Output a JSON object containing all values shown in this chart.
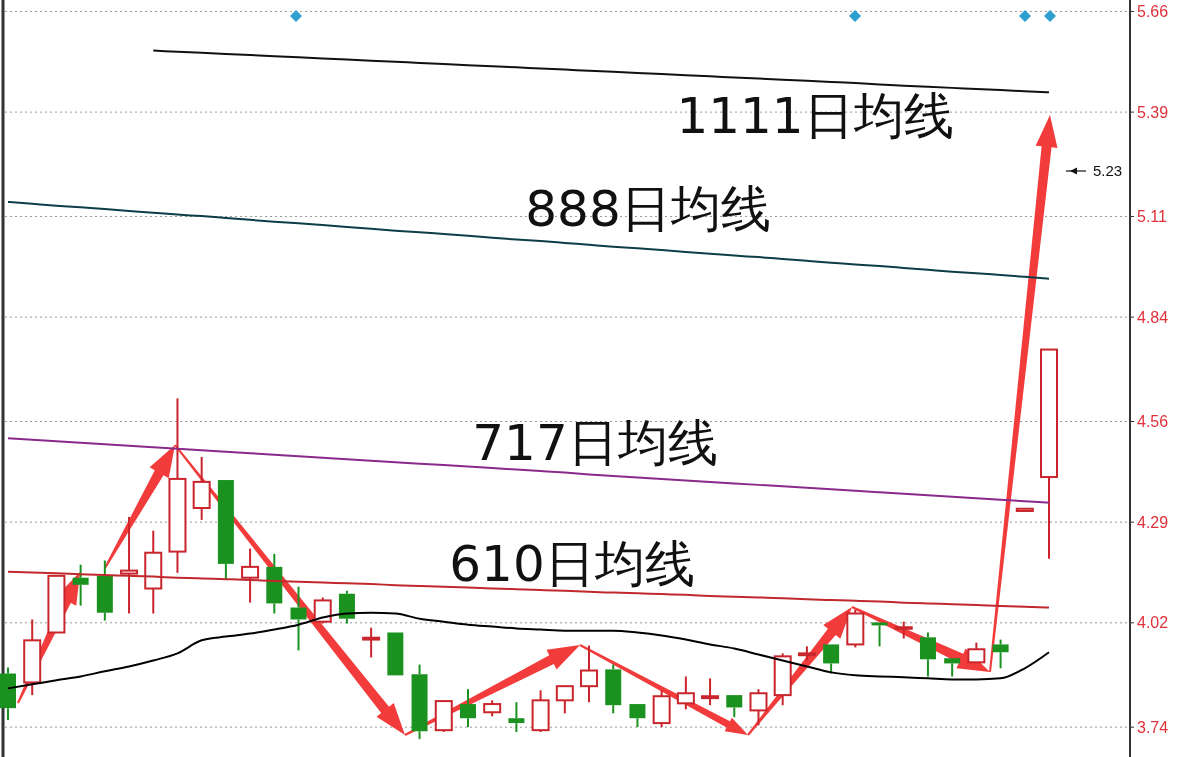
{
  "chart_data": {
    "type": "candlestick",
    "categories": [
      null,
      null,
      null,
      null,
      null,
      null,
      null,
      null,
      null,
      null,
      null,
      null,
      null,
      null,
      null,
      null,
      null,
      null,
      null,
      null,
      null,
      null,
      null,
      null,
      null,
      null,
      null,
      null,
      null,
      null,
      null,
      null,
      null,
      null,
      null,
      null,
      null,
      null,
      null,
      null,
      null,
      null,
      null,
      null
    ],
    "ohlc": [
      [
        3.884,
        3.9,
        3.759,
        3.791
      ],
      [
        3.86,
        4.029,
        3.826,
        3.973
      ],
      [
        3.994,
        4.146,
        3.994,
        4.146
      ],
      [
        4.141,
        4.176,
        4.066,
        4.122
      ],
      [
        4.146,
        4.187,
        4.026,
        4.047
      ],
      [
        4.152,
        4.304,
        4.045,
        4.16
      ],
      [
        4.112,
        4.267,
        4.045,
        4.208
      ],
      [
        4.211,
        4.622,
        4.154,
        4.406
      ],
      [
        4.328,
        4.465,
        4.296,
        4.398
      ],
      [
        4.403,
        4.403,
        4.136,
        4.178
      ],
      [
        4.141,
        4.219,
        4.074,
        4.17
      ],
      [
        4.17,
        4.205,
        4.045,
        4.072
      ],
      [
        4.061,
        4.117,
        3.946,
        4.029
      ],
      [
        4.023,
        4.088,
        4.018,
        4.08
      ],
      [
        4.098,
        4.106,
        4.018,
        4.031
      ],
      [
        3.975,
        4.007,
        3.927,
        3.98
      ],
      [
        3.994,
        3.994,
        3.879,
        3.879
      ],
      [
        3.882,
        3.908,
        3.708,
        3.729
      ],
      [
        3.732,
        3.81,
        3.727,
        3.81
      ],
      [
        3.802,
        3.842,
        3.74,
        3.764
      ],
      [
        3.78,
        3.812,
        3.769,
        3.802
      ],
      [
        3.764,
        3.807,
        3.727,
        3.751
      ],
      [
        3.732,
        3.839,
        3.727,
        3.812
      ],
      [
        3.812,
        3.85,
        3.777,
        3.85
      ],
      [
        3.85,
        3.959,
        3.807,
        3.892
      ],
      [
        3.895,
        3.908,
        3.777,
        3.799
      ],
      [
        3.802,
        3.802,
        3.74,
        3.764
      ],
      [
        3.751,
        3.839,
        3.74,
        3.823
      ],
      [
        3.804,
        3.876,
        3.788,
        3.831
      ],
      [
        3.818,
        3.871,
        3.799,
        3.823
      ],
      [
        3.826,
        3.826,
        3.767,
        3.793
      ],
      [
        3.785,
        3.842,
        3.745,
        3.831
      ],
      [
        3.826,
        3.938,
        3.799,
        3.93
      ],
      [
        3.933,
        3.957,
        3.919,
        3.938
      ],
      [
        3.962,
        3.962,
        3.884,
        3.911
      ],
      [
        3.962,
        4.055,
        3.954,
        4.045
      ],
      [
        4.021,
        4.021,
        3.957,
        4.013
      ],
      [
        4.005,
        4.023,
        3.978,
        4.008
      ],
      [
        3.981,
        3.994,
        3.876,
        3.922
      ],
      [
        3.925,
        3.925,
        3.876,
        3.911
      ],
      [
        3.914,
        3.967,
        3.914,
        3.949
      ],
      [
        3.962,
        3.975,
        3.898,
        3.941
      ],
      [
        4.32,
        4.326,
        4.318,
        4.326
      ],
      [
        4.411,
        4.753,
        4.192,
        4.753
      ]
    ],
    "colors": [
      "#1b921f",
      "#c9252c",
      "#c9252c",
      "#1b921f",
      "#1b921f",
      "#c9252c",
      "#c9252c",
      "#c9252c",
      "#c9252c",
      "#1b921f",
      "#c9252c",
      "#1b921f",
      "#1b921f",
      "#c9252c",
      "#1b921f",
      "#c9252c",
      "#1b921f",
      "#1b921f",
      "#c9252c",
      "#1b921f",
      "#c9252c",
      "#1b921f",
      "#c9252c",
      "#c9252c",
      "#c9252c",
      "#1b921f",
      "#1b921f",
      "#c9252c",
      "#c9252c",
      "#c9252c",
      "#1b921f",
      "#c9252c",
      "#c9252c",
      "#c9252c",
      "#1b921f",
      "#c9252c",
      "#1b921f",
      "#c9252c",
      "#1b921f",
      "#1b921f",
      "#c9252c",
      "#1b921f",
      "#c9252c",
      "#c9252c"
    ],
    "series": [
      {
        "type": "line",
        "name": "610日均线",
        "color": "#c0282d",
        "values": [
          4.157,
          4.155,
          4.153,
          4.15,
          4.148,
          4.146,
          4.144,
          4.141,
          4.139,
          4.137,
          4.135,
          4.132,
          4.13,
          4.128,
          4.126,
          4.124,
          4.121,
          4.119,
          4.117,
          4.115,
          4.112,
          4.11,
          4.108,
          4.106,
          4.103,
          4.101,
          4.099,
          4.097,
          4.095,
          4.092,
          4.09,
          4.088,
          4.086,
          4.083,
          4.081,
          4.079,
          4.077,
          4.074,
          4.072,
          4.07,
          4.068,
          4.065,
          4.063,
          4.061
        ]
      },
      {
        "type": "line",
        "name": "717日均线",
        "color": "#8a2a8a",
        "values": [
          4.515,
          4.511,
          4.507,
          4.503,
          4.499,
          4.495,
          4.491,
          4.487,
          4.483,
          4.479,
          4.475,
          4.471,
          4.467,
          4.463,
          4.459,
          4.455,
          4.451,
          4.447,
          4.443,
          4.439,
          4.435,
          4.431,
          4.427,
          4.423,
          4.418,
          4.414,
          4.41,
          4.406,
          4.402,
          4.398,
          4.394,
          4.39,
          4.386,
          4.382,
          4.378,
          4.374,
          4.37,
          4.366,
          4.362,
          4.358,
          4.354,
          4.35,
          4.346,
          4.342
        ]
      },
      {
        "type": "line",
        "name": "888日均线",
        "color": "#0e3d4a",
        "values": [
          5.149,
          5.144,
          5.139,
          5.135,
          5.13,
          5.125,
          5.12,
          5.115,
          5.111,
          5.106,
          5.101,
          5.096,
          5.092,
          5.087,
          5.082,
          5.077,
          5.072,
          5.068,
          5.063,
          5.058,
          5.053,
          5.048,
          5.044,
          5.039,
          5.034,
          5.029,
          5.025,
          5.02,
          5.015,
          5.01,
          5.005,
          5.001,
          4.996,
          4.991,
          4.986,
          4.981,
          4.977,
          4.972,
          4.967,
          4.962,
          4.958,
          4.953,
          4.948,
          4.943
        ]
      },
      {
        "type": "line",
        "name": "1111日均线",
        "color": "#111111",
        "values": [
          null,
          null,
          null,
          null,
          null,
          null,
          5.555,
          5.552,
          5.549,
          5.546,
          5.543,
          5.54,
          5.537,
          5.534,
          5.531,
          5.528,
          5.525,
          5.522,
          5.519,
          5.516,
          5.513,
          5.51,
          5.507,
          5.504,
          5.501,
          5.498,
          5.495,
          5.492,
          5.489,
          5.486,
          5.483,
          5.48,
          5.477,
          5.474,
          5.471,
          5.468,
          5.464,
          5.461,
          5.458,
          5.455,
          5.452,
          5.449,
          5.446,
          5.443
        ]
      },
      {
        "type": "line",
        "color": "#000000",
        "values": [
          3.844,
          3.855,
          3.866,
          3.876,
          3.89,
          3.903,
          3.919,
          3.938,
          3.973,
          3.983,
          3.991,
          4.002,
          4.015,
          4.034,
          4.045,
          4.047,
          4.045,
          4.031,
          4.023,
          4.015,
          4.01,
          4.005,
          4.002,
          3.999,
          3.999,
          3.999,
          3.994,
          3.986,
          3.975,
          3.962,
          3.951,
          3.935,
          3.919,
          3.903,
          3.887,
          3.879,
          3.876,
          3.874,
          3.871,
          3.868,
          3.868,
          3.871,
          3.898,
          3.941
        ]
      }
    ],
    "ylim": [
      3.66,
      5.68
    ],
    "yticks": [
      3.74,
      4.02,
      4.29,
      4.56,
      4.84,
      5.11,
      5.39,
      5.66
    ],
    "grid": "y",
    "tick_labels": "y",
    "line_style": "solid",
    "annotations": [
      "5.23"
    ]
  }
}
